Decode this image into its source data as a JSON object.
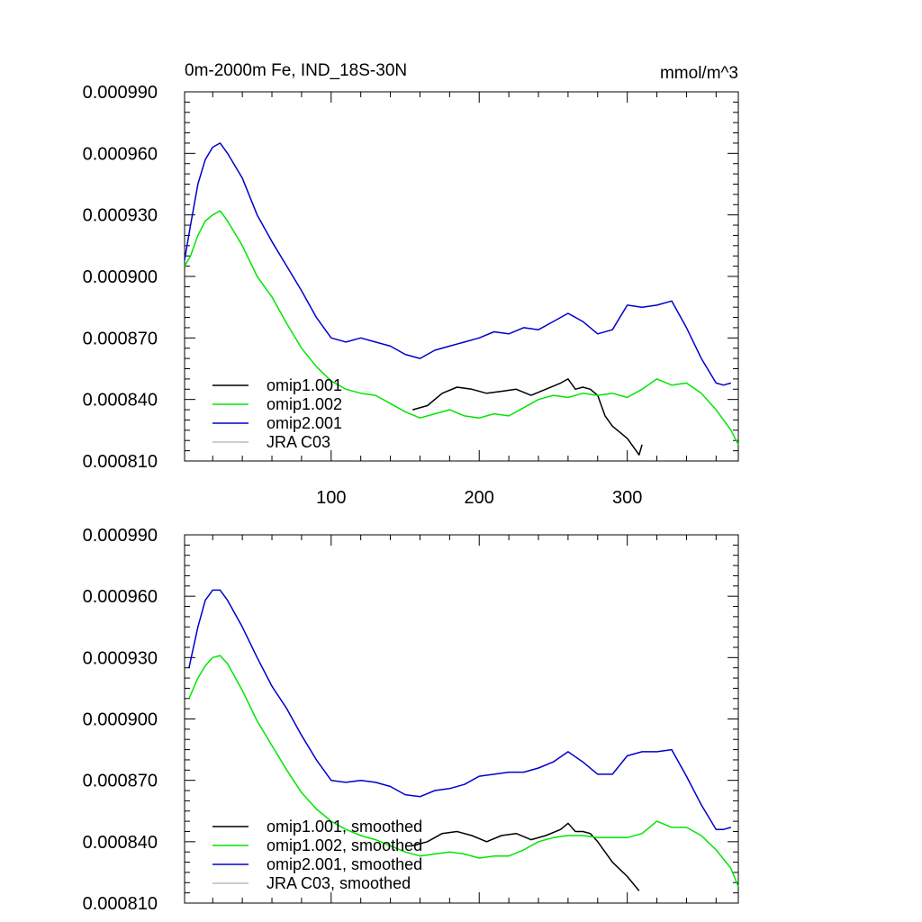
{
  "figure": {
    "title_left": "0m-2000m Fe, IND_18S-30N",
    "title_right": "mmol/m^3"
  },
  "chart_data": [
    {
      "type": "line",
      "title": "0m-2000m Fe, IND_18S-30N",
      "units": "mmol/m^3",
      "xlim": [
        1,
        375
      ],
      "ylim": [
        0.00081,
        0.00099
      ],
      "xticks": [
        "100",
        "200",
        "300"
      ],
      "yticks": [
        "0.000810",
        "0.000840",
        "0.000870",
        "0.000900",
        "0.000930",
        "0.000960",
        "0.000990"
      ],
      "legend": [
        "omip1.001",
        "omip1.002",
        "omip2.001",
        "JRA C03"
      ],
      "colors": [
        "#000000",
        "#00e600",
        "#0000cc",
        "#bbbbbb"
      ],
      "series": [
        {
          "name": "omip1.001",
          "x": [
            155,
            165,
            175,
            185,
            195,
            205,
            215,
            225,
            235,
            245,
            255,
            260,
            265,
            270,
            275,
            280,
            285,
            290,
            295,
            300,
            305,
            308,
            310
          ],
          "y": [
            0.000835,
            0.000837,
            0.000843,
            0.000846,
            0.000845,
            0.000843,
            0.000844,
            0.000845,
            0.000842,
            0.000845,
            0.000848,
            0.00085,
            0.000845,
            0.000846,
            0.000845,
            0.000842,
            0.000832,
            0.000827,
            0.000824,
            0.000821,
            0.000816,
            0.000813,
            0.000818
          ]
        },
        {
          "name": "omip1.002",
          "x": [
            1,
            5,
            10,
            15,
            20,
            25,
            30,
            40,
            50,
            60,
            70,
            80,
            90,
            100,
            110,
            120,
            130,
            140,
            150,
            160,
            170,
            180,
            190,
            200,
            210,
            220,
            230,
            240,
            250,
            260,
            270,
            280,
            290,
            300,
            310,
            320,
            330,
            340,
            350,
            360,
            370,
            375
          ],
          "y": [
            0.000905,
            0.00091,
            0.00092,
            0.000927,
            0.00093,
            0.000932,
            0.000927,
            0.000915,
            0.0009,
            0.00089,
            0.000877,
            0.000865,
            0.000856,
            0.000849,
            0.000845,
            0.000843,
            0.000842,
            0.000838,
            0.000834,
            0.000831,
            0.000833,
            0.000835,
            0.000832,
            0.000831,
            0.000833,
            0.000832,
            0.000836,
            0.00084,
            0.000842,
            0.000841,
            0.000843,
            0.000842,
            0.000843,
            0.000841,
            0.000845,
            0.00085,
            0.000847,
            0.000848,
            0.000843,
            0.000835,
            0.000825,
            0.000818
          ]
        },
        {
          "name": "omip2.001",
          "x": [
            1,
            5,
            10,
            15,
            20,
            25,
            30,
            40,
            50,
            60,
            70,
            80,
            90,
            100,
            110,
            120,
            130,
            140,
            150,
            160,
            170,
            180,
            190,
            200,
            210,
            220,
            230,
            240,
            250,
            260,
            270,
            280,
            290,
            300,
            310,
            320,
            330,
            340,
            350,
            360,
            365,
            370
          ],
          "y": [
            0.000908,
            0.000925,
            0.000945,
            0.000957,
            0.000963,
            0.000965,
            0.00096,
            0.000948,
            0.00093,
            0.000917,
            0.000905,
            0.000893,
            0.00088,
            0.00087,
            0.000868,
            0.00087,
            0.000868,
            0.000866,
            0.000862,
            0.00086,
            0.000864,
            0.000866,
            0.000868,
            0.00087,
            0.000873,
            0.000872,
            0.000875,
            0.000874,
            0.000878,
            0.000882,
            0.000878,
            0.000872,
            0.000874,
            0.000886,
            0.000885,
            0.000886,
            0.000888,
            0.000875,
            0.00086,
            0.000848,
            0.000847,
            0.000848
          ]
        }
      ]
    },
    {
      "type": "line",
      "title": "",
      "xlim": [
        1,
        375
      ],
      "ylim": [
        0.00081,
        0.00099
      ],
      "xticks": [],
      "yticks": [
        "0.000810",
        "0.000840",
        "0.000870",
        "0.000900",
        "0.000930",
        "0.000960",
        "0.000990"
      ],
      "legend": [
        "omip1.001, smoothed",
        "omip1.002, smoothed",
        "omip2.001, smoothed",
        "JRA C03, smoothed"
      ],
      "colors": [
        "#000000",
        "#00e600",
        "#0000cc",
        "#bbbbbb"
      ],
      "series": [
        {
          "name": "omip1.001, smoothed",
          "x": [
            155,
            165,
            175,
            185,
            195,
            205,
            215,
            225,
            235,
            245,
            255,
            260,
            265,
            270,
            275,
            280,
            290,
            300,
            308
          ],
          "y": [
            0.000838,
            0.00084,
            0.000844,
            0.000845,
            0.000843,
            0.00084,
            0.000843,
            0.000844,
            0.000841,
            0.000843,
            0.000846,
            0.000849,
            0.000845,
            0.000845,
            0.000844,
            0.00084,
            0.00083,
            0.000823,
            0.000816
          ]
        },
        {
          "name": "omip1.002, smoothed",
          "x": [
            4,
            10,
            15,
            20,
            25,
            30,
            40,
            50,
            60,
            70,
            80,
            90,
            100,
            110,
            120,
            130,
            140,
            150,
            160,
            170,
            180,
            190,
            200,
            210,
            220,
            230,
            240,
            250,
            260,
            270,
            280,
            290,
            300,
            310,
            320,
            330,
            340,
            350,
            360,
            370,
            375
          ],
          "y": [
            0.00091,
            0.00092,
            0.000926,
            0.00093,
            0.000931,
            0.000927,
            0.000914,
            0.000899,
            0.000887,
            0.000875,
            0.000864,
            0.000856,
            0.00085,
            0.000846,
            0.000843,
            0.000841,
            0.000838,
            0.000835,
            0.000833,
            0.000834,
            0.000835,
            0.000834,
            0.000832,
            0.000833,
            0.000833,
            0.000836,
            0.00084,
            0.000842,
            0.000843,
            0.000843,
            0.000842,
            0.000842,
            0.000842,
            0.000844,
            0.00085,
            0.000847,
            0.000847,
            0.000843,
            0.000836,
            0.000827,
            0.000818
          ]
        },
        {
          "name": "omip2.001, smoothed",
          "x": [
            4,
            10,
            15,
            20,
            25,
            30,
            40,
            50,
            60,
            70,
            80,
            90,
            100,
            110,
            120,
            130,
            140,
            150,
            160,
            170,
            180,
            190,
            200,
            210,
            220,
            230,
            240,
            250,
            260,
            270,
            280,
            290,
            300,
            310,
            320,
            330,
            340,
            350,
            360,
            365,
            370
          ],
          "y": [
            0.000925,
            0.000945,
            0.000958,
            0.000963,
            0.000963,
            0.000958,
            0.000945,
            0.00093,
            0.000916,
            0.000905,
            0.000892,
            0.00088,
            0.00087,
            0.000869,
            0.00087,
            0.000869,
            0.000867,
            0.000863,
            0.000862,
            0.000865,
            0.000866,
            0.000868,
            0.000872,
            0.000873,
            0.000874,
            0.000874,
            0.000876,
            0.000879,
            0.000884,
            0.000879,
            0.000873,
            0.000873,
            0.000882,
            0.000884,
            0.000884,
            0.000885,
            0.000872,
            0.000858,
            0.000846,
            0.000846,
            0.000847
          ]
        }
      ]
    }
  ]
}
